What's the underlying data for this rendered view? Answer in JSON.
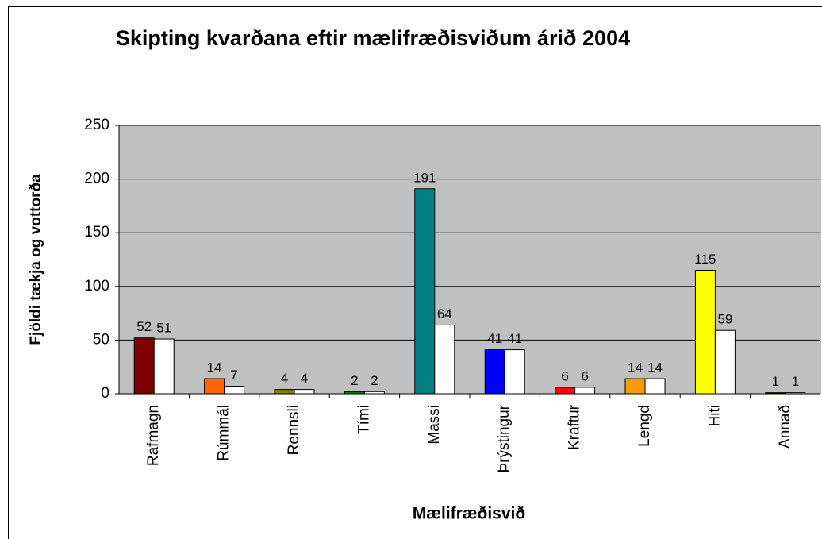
{
  "chart_data": {
    "type": "bar",
    "title": "Skipting kvarðana eftir mælifræðisviðum árið 2004",
    "x_label": "Mælifræðisvið",
    "y_label": "Fjöldi tækja og vottorða",
    "categories": [
      "Rafmagn",
      "Rúmmál",
      "Rennsli",
      "Tími",
      "Massi",
      "Þrýstingur",
      "Kraftur",
      "Lengd",
      "Hiti",
      "Annað"
    ],
    "series": [
      {
        "colors": [
          "#800000",
          "#ff6600",
          "#808000",
          "#008000",
          "#008080",
          "#0000ff",
          "#ff0000",
          "#ff9900",
          "#ffff00",
          "#000080"
        ],
        "values": [
          52,
          14,
          4,
          2,
          191,
          41,
          6,
          14,
          115,
          1
        ]
      },
      {
        "color": "#ffffff",
        "values": [
          51,
          7,
          4,
          2,
          64,
          41,
          6,
          14,
          59,
          1
        ]
      }
    ],
    "ylim": [
      0,
      250
    ],
    "yticks": [
      0,
      50,
      100,
      150,
      200,
      250
    ],
    "grid": true,
    "plot_background": "#c0c0c0"
  }
}
